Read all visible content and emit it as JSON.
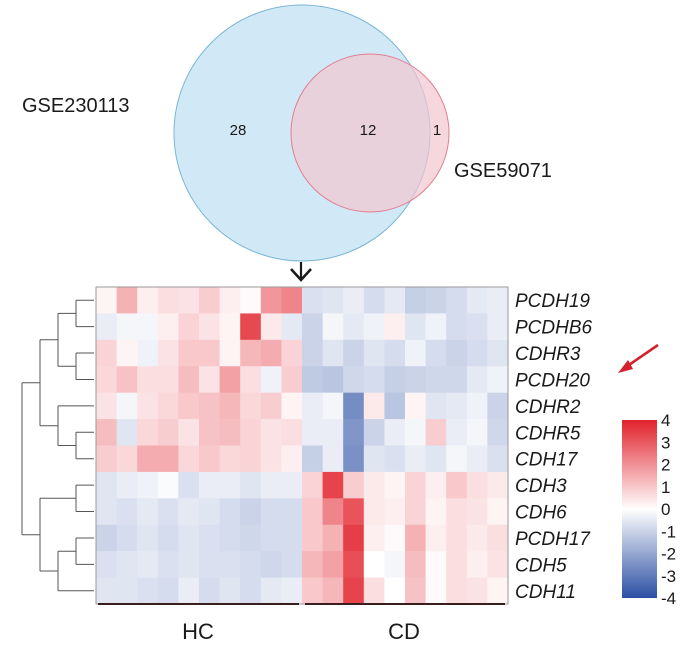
{
  "chart_data": [
    {
      "type": "venn",
      "sets": [
        {
          "name": "GSE230113",
          "color": "#c9e5f5",
          "border": "#7ab6d6"
        },
        {
          "name": "GSE59071",
          "color": "#f2c6d0",
          "border": "#e07f92"
        }
      ],
      "regions": {
        "only_first": "28",
        "intersection": "12",
        "only_second": "1"
      }
    },
    {
      "type": "heatmap",
      "rows": [
        "PCDH19",
        "PCDHB6",
        "CDHR3",
        "PCDH20",
        "CDHR2",
        "CDHR5",
        "CDH17",
        "CDH3",
        "CDH6",
        "PCDH17",
        "CDH5",
        "CDH11"
      ],
      "highlighted_row": "PCDH20",
      "groups": [
        {
          "name": "HC",
          "n": 10
        },
        {
          "name": "CD",
          "n": 10
        }
      ],
      "values": [
        [
          0.2,
          1.4,
          0.3,
          0.6,
          0.5,
          0.9,
          0.3,
          0.1,
          1.9,
          2.2,
          -0.7,
          -0.6,
          -0.4,
          -0.8,
          -0.5,
          -1.1,
          -1.0,
          -0.8,
          -0.5,
          -0.4
        ],
        [
          -0.4,
          -0.2,
          -0.2,
          0.3,
          0.8,
          0.5,
          0.2,
          3.3,
          0.4,
          -0.5,
          -1.0,
          -0.2,
          -0.5,
          -0.3,
          0.3,
          -0.6,
          -0.3,
          -0.8,
          -0.7,
          -0.4
        ],
        [
          0.8,
          0.2,
          -0.3,
          0.5,
          1.0,
          1.0,
          0.2,
          1.3,
          1.5,
          0.8,
          -1.0,
          -0.6,
          -1.0,
          -0.6,
          -0.8,
          -0.3,
          -0.8,
          -1.0,
          -0.8,
          -0.6
        ],
        [
          0.7,
          1.1,
          0.6,
          0.6,
          1.2,
          0.5,
          1.7,
          0.6,
          -0.3,
          0.9,
          -1.2,
          -1.3,
          -0.9,
          -0.8,
          -1.1,
          -1.0,
          -0.9,
          -0.9,
          -0.5,
          -0.3
        ],
        [
          0.5,
          -0.2,
          0.5,
          0.7,
          1.0,
          1.1,
          1.3,
          0.7,
          0.9,
          0.2,
          -0.4,
          -0.2,
          -2.6,
          0.4,
          -1.3,
          0.2,
          -0.6,
          -0.5,
          -0.3,
          -1.0
        ],
        [
          1.2,
          -0.6,
          0.7,
          0.9,
          0.5,
          1.1,
          1.2,
          0.8,
          0.5,
          0.6,
          -0.4,
          -0.4,
          -2.4,
          -1.0,
          -0.4,
          -0.2,
          0.9,
          -0.4,
          -0.2,
          -0.9
        ],
        [
          0.9,
          0.7,
          1.5,
          1.5,
          0.7,
          1.0,
          0.7,
          0.8,
          0.5,
          0.3,
          -1.1,
          -0.4,
          -2.5,
          -0.6,
          -0.7,
          -0.4,
          -0.6,
          -0.2,
          -0.4,
          -0.7
        ],
        [
          -0.6,
          -0.4,
          -0.3,
          -0.1,
          -0.7,
          -0.4,
          -0.4,
          -0.6,
          -0.4,
          -0.4,
          0.8,
          3.4,
          0.9,
          0.4,
          0.2,
          0.8,
          0.3,
          1.0,
          0.6,
          0.4
        ],
        [
          -0.6,
          -0.7,
          -0.5,
          -0.7,
          -0.5,
          -0.6,
          -0.8,
          -1.0,
          -0.8,
          -0.8,
          1.0,
          2.2,
          3.1,
          0.4,
          0.3,
          0.8,
          0.2,
          0.6,
          0.5,
          0.2
        ],
        [
          -1.0,
          -0.8,
          -0.6,
          -0.8,
          -0.6,
          -0.7,
          -0.8,
          -0.9,
          -0.8,
          -0.8,
          1.0,
          1.4,
          3.5,
          0.3,
          0.1,
          1.4,
          0.3,
          0.6,
          0.4,
          0.6
        ],
        [
          -0.7,
          -0.6,
          -0.5,
          -0.7,
          -0.6,
          -0.7,
          -0.7,
          -0.8,
          -0.9,
          -0.8,
          1.3,
          1.7,
          3.2,
          0.0,
          -0.2,
          1.2,
          0.1,
          0.6,
          0.3,
          0.5
        ],
        [
          -0.6,
          -0.6,
          -0.7,
          -0.8,
          -0.4,
          -0.8,
          -0.6,
          -0.8,
          -0.5,
          -0.4,
          1.0,
          1.3,
          3.4,
          0.6,
          0.0,
          1.1,
          0.1,
          0.6,
          0.5,
          0.2
        ]
      ],
      "colorbar": {
        "ticks": [
          "4",
          "3",
          "2",
          "1",
          "0",
          "-1",
          "-2",
          "-3",
          "-4"
        ],
        "range": [
          -4,
          4
        ],
        "colors": {
          "low": "#2b4fa3",
          "mid": "#ffffff",
          "high": "#e2222c"
        }
      },
      "dendrogram": {
        "leaf_order": [
          0,
          1,
          2,
          3,
          4,
          5,
          6,
          7,
          8,
          9,
          10,
          11
        ],
        "merges": [
          [
            0,
            1
          ],
          [
            2,
            3
          ],
          [
            5,
            6
          ],
          [
            4,
            14
          ],
          [
            12,
            13
          ],
          [
            16,
            15
          ],
          [
            7,
            8
          ],
          [
            9,
            10
          ],
          [
            19,
            11
          ],
          [
            18,
            20
          ],
          [
            17,
            21
          ]
        ]
      }
    }
  ],
  "colors": {
    "arrow_black": "#1a1a1a",
    "arrow_red": "#d6202d",
    "group_bar": "#3a1e1e"
  }
}
